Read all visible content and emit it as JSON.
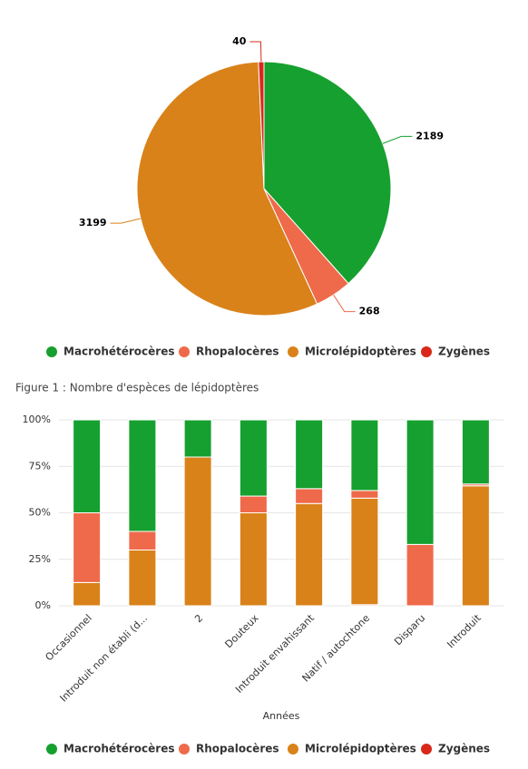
{
  "figure_caption": "Figure 1 : Nombre d'espèces de lépidoptères",
  "chart_data": [
    {
      "type": "pie",
      "series": [
        {
          "name": "Macrohétérocères",
          "color": "#16a02f",
          "values": [
            2189
          ]
        },
        {
          "name": "Rhopalocères",
          "color": "#ef6a4a",
          "values": [
            268
          ]
        },
        {
          "name": "Microlépidoptères",
          "color": "#d9821a",
          "values": [
            3199
          ]
        },
        {
          "name": "Zygènes",
          "color": "#d9281b",
          "values": [
            40
          ]
        }
      ]
    },
    {
      "type": "stacked_percent_bar",
      "x_label": "Années",
      "categories": [
        "Occasionnel",
        "Introduit non établi (d...",
        "2",
        "Douteux",
        "Introduit envahissant",
        "Natif / autochtone",
        "Disparu",
        "Introduit"
      ],
      "series": [
        {
          "name": "Macrohétérocères",
          "color": "#16a02f",
          "values": [
            50,
            60,
            20,
            41,
            37,
            38,
            67,
            34.5
          ]
        },
        {
          "name": "Rhopalocères",
          "color": "#ef6a4a",
          "values": [
            37.5,
            10,
            0,
            9,
            8,
            4.1,
            33,
            1
          ]
        },
        {
          "name": "Microlépidoptères",
          "color": "#d9821a",
          "values": [
            12.5,
            30,
            80,
            50,
            55,
            57.3,
            0,
            64.5
          ]
        },
        {
          "name": "Zygènes",
          "color": "#d9281b",
          "values": [
            0,
            0,
            0,
            0,
            0,
            0.6,
            0,
            0
          ]
        }
      ],
      "ylim": [
        0,
        100
      ],
      "yticks": [
        {
          "value": 0,
          "label": "0%"
        },
        {
          "value": 25,
          "label": "25%"
        },
        {
          "value": 50,
          "label": "50%"
        },
        {
          "value": 75,
          "label": "75%"
        },
        {
          "value": 100,
          "label": "100%"
        }
      ],
      "grid": true
    }
  ]
}
